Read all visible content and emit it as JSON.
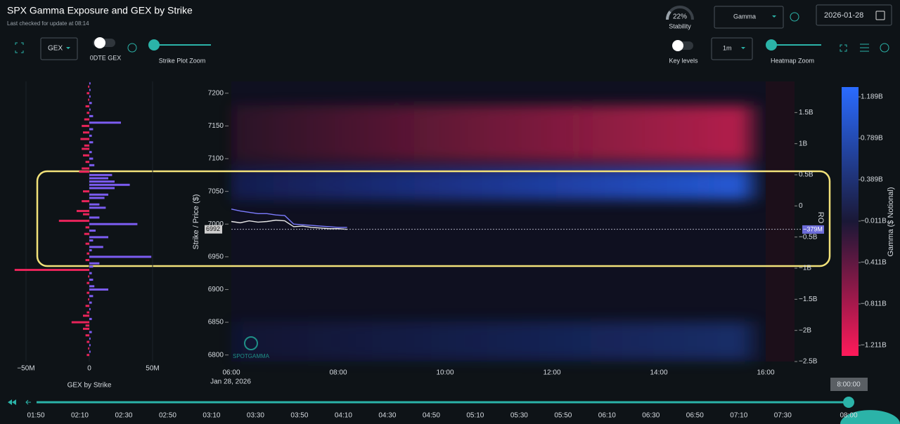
{
  "header": {
    "title": "SPX Gamma Exposure and GEX by Strike",
    "subtitle": "Last checked for update at 08:14"
  },
  "controls": {
    "gex_select": "GEX",
    "odte_label": "0DTE GEX",
    "strike_zoom_label": "Strike Plot Zoom",
    "stability": {
      "value": 22,
      "label": "22%"
    },
    "stability_label": "Stability",
    "metric_select": "Gamma",
    "date": "2026-01-28",
    "key_levels_label": "Key levels",
    "interval_select": "1m",
    "heatmap_zoom_label": "Heatmap Zoom"
  },
  "gex_chart": {
    "type": "bar",
    "xlabel": "GEX by Strike",
    "xlim": [
      -60,
      57
    ],
    "xticks": [
      {
        "value": -50,
        "label": "−50M"
      },
      0,
      {
        "value": 50,
        "label": "50M"
      }
    ],
    "positive_color": "#7b5cf0",
    "negative_color": "#e8245a",
    "strikes": [
      7215,
      7210,
      7205,
      7200,
      7195,
      7190,
      7185,
      7180,
      7175,
      7170,
      7165,
      7160,
      7155,
      7150,
      7145,
      7140,
      7135,
      7130,
      7125,
      7120,
      7115,
      7110,
      7105,
      7100,
      7095,
      7090,
      7085,
      7080,
      7075,
      7070,
      7065,
      7060,
      7055,
      7050,
      7045,
      7040,
      7035,
      7030,
      7025,
      7020,
      7015,
      7010,
      7005,
      7000,
      6995,
      6990,
      6985,
      6980,
      6975,
      6970,
      6965,
      6960,
      6955,
      6950,
      6945,
      6940,
      6935,
      6930,
      6925,
      6920,
      6915,
      6910,
      6905,
      6900,
      6895,
      6890,
      6885,
      6880,
      6875,
      6870,
      6865,
      6860,
      6855,
      6850,
      6845,
      6840,
      6835,
      6830,
      6825,
      6820,
      6815,
      6810,
      6805,
      6800
    ],
    "values": [
      1,
      -1,
      1,
      -2,
      1,
      -1,
      2,
      -3,
      1,
      -2,
      3,
      -4,
      25,
      -6,
      3,
      -5,
      2,
      -7,
      3,
      -4,
      -6,
      2,
      -5,
      3,
      -3,
      4,
      -6,
      -8,
      18,
      15,
      20,
      32,
      20,
      -5,
      15,
      12,
      -6,
      8,
      13,
      -10,
      -5,
      8,
      -24,
      38,
      -3,
      5,
      -4,
      15,
      3,
      -3,
      11,
      2,
      -2,
      49,
      -3,
      8,
      3,
      -59,
      2,
      -1,
      3,
      -2,
      4,
      15,
      -2,
      3,
      -1,
      2,
      -3,
      1,
      -2,
      -5,
      2,
      -14,
      -3,
      -5,
      2,
      -3,
      1,
      -2,
      1,
      -1,
      1,
      -2
    ]
  },
  "heatmap": {
    "type": "line",
    "ylabel": "Strike / Price ($)",
    "ylim": [
      6790,
      7218
    ],
    "yticks": [
      6800,
      6850,
      6900,
      6950,
      7000,
      7050,
      7100,
      7150,
      7200
    ],
    "xlim": [
      "06:00",
      "16:32"
    ],
    "xticks": [
      "06:00",
      "08:00",
      "10:00",
      "12:00",
      "14:00",
      "16:00"
    ],
    "date_label": "Jan 28, 2026",
    "x": [
      "06:00",
      "06:10",
      "06:20",
      "06:30",
      "06:40",
      "06:50",
      "07:00",
      "07:10",
      "07:20",
      "07:30",
      "07:40",
      "07:50",
      "08:00",
      "08:10"
    ],
    "series": [
      {
        "color": "#e6e6e6",
        "values": [
          7004,
          7002,
          7005,
          7003,
          7004,
          7006,
          7005,
          6996,
          6997,
          6995,
          6994,
          6993,
          6993,
          6992
        ]
      },
      {
        "color": "#7c7cff",
        "values": [
          7023,
          7020,
          7018,
          7016,
          7016,
          7014,
          7013,
          7000,
          6999,
          6998,
          6997,
          6996,
          6995,
          6995
        ]
      }
    ],
    "current_price": 6992,
    "y2label": "RO",
    "y2lim": [
      -2.5,
      2.0
    ],
    "y2ticks": [
      {
        "value": 1.5,
        "label": "1.5B"
      },
      {
        "value": 1,
        "label": "1B"
      },
      {
        "value": 0.5,
        "label": "0.5B"
      },
      0,
      {
        "value": -0.5,
        "label": "−0.5B"
      },
      {
        "value": -1,
        "label": "−1B"
      },
      {
        "value": -1.5,
        "label": "−1.5B"
      },
      {
        "value": -2,
        "label": "−2B"
      },
      {
        "value": -2.5,
        "label": "−2.5B"
      }
    ],
    "zero_marker": {
      "value": -0.379,
      "label": "−379M"
    },
    "watermark": "SPOTGAMMA"
  },
  "colorbar": {
    "title": "Gamma ($ Notional)",
    "clim": [
      -1.313,
      1.284
    ],
    "ticks": [
      {
        "value": 1.189,
        "label": "1.189B"
      },
      {
        "value": 0.789,
        "label": "0.789B"
      },
      {
        "value": 0.389,
        "label": "0.389B"
      },
      {
        "value": -0.011,
        "label": "−0.011B"
      },
      {
        "value": -0.411,
        "label": "−0.411B"
      },
      {
        "value": -0.811,
        "label": "−0.811B"
      },
      {
        "value": -1.211,
        "label": "−1.211B"
      }
    ]
  },
  "timeline": {
    "xlim": [
      "01:50",
      "08:00"
    ],
    "ticks": [
      "01:50",
      "02:10",
      "02:30",
      "02:50",
      "03:10",
      "03:30",
      "03:50",
      "04:10",
      "04:30",
      "04:50",
      "05:10",
      "05:30",
      "05:50",
      "06:10",
      "06:30",
      "06:50",
      "07:10",
      "07:30"
    ],
    "current": "08:00",
    "current_label": "8:00:00"
  }
}
